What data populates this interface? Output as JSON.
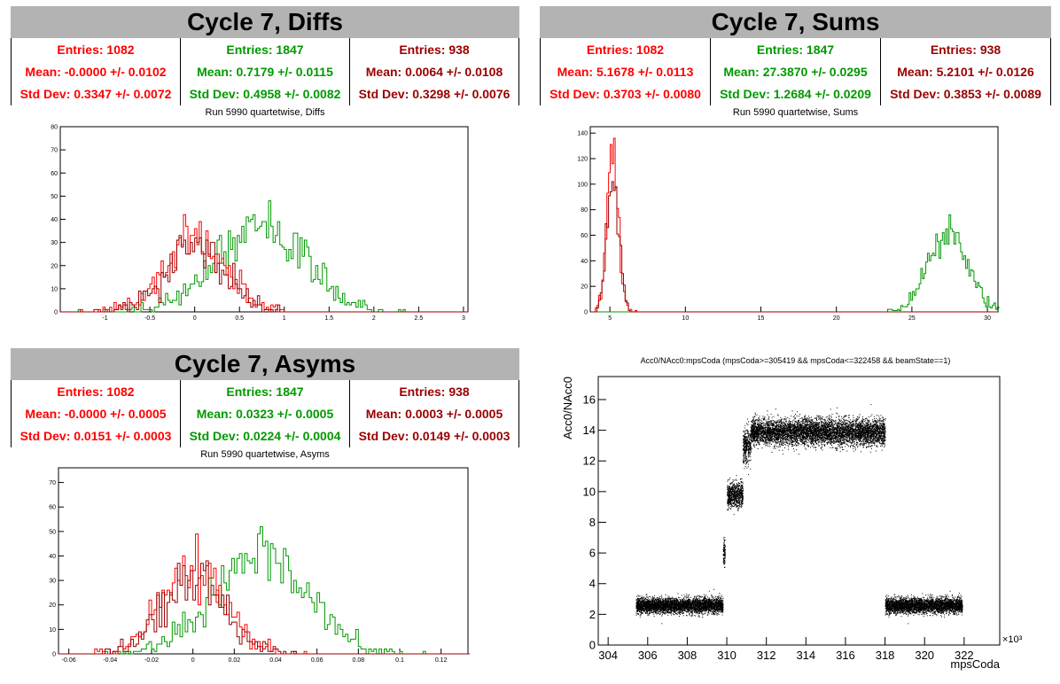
{
  "colors": {
    "red": "#ff0000",
    "green": "#009900",
    "darkred": "#990000",
    "title_bg": "#b3b3b3"
  },
  "panels": [
    {
      "title": "Cycle 7, Diffs",
      "stats": [
        {
          "entries": "Entries: 1082",
          "mean": "Mean: -0.0000 +/- 0.0102",
          "std": "Std Dev: 0.3347 +/- 0.0072",
          "color": "#ff0000"
        },
        {
          "entries": "Entries: 1847",
          "mean": "Mean: 0.7179 +/- 0.0115",
          "std": "Std Dev: 0.4958 +/- 0.0082",
          "color": "#009900"
        },
        {
          "entries": "Entries: 938",
          "mean": "Mean: 0.0064 +/- 0.0108",
          "std": "Std Dev: 0.3298 +/- 0.0076",
          "color": "#990000"
        }
      ],
      "subtitle": "Run 5990 quartetwise, Diffs"
    },
    {
      "title": "Cycle 7, Sums",
      "stats": [
        {
          "entries": "Entries: 1082",
          "mean": "Mean: 5.1678 +/- 0.0113",
          "std": "Std Dev: 0.3703 +/- 0.0080",
          "color": "#ff0000"
        },
        {
          "entries": "Entries: 1847",
          "mean": "Mean: 27.3870 +/- 0.0295",
          "std": "Std Dev: 1.2684 +/- 0.0209",
          "color": "#009900"
        },
        {
          "entries": "Entries: 938",
          "mean": "Mean: 5.2101 +/- 0.0126",
          "std": "Std Dev: 0.3853 +/- 0.0089",
          "color": "#990000"
        }
      ],
      "subtitle": "Run 5990 quartetwise, Sums"
    },
    {
      "title": "Cycle 7, Asyms",
      "stats": [
        {
          "entries": "Entries: 1082",
          "mean": "Mean: -0.0000 +/- 0.0005",
          "std": "Std Dev: 0.0151 +/- 0.0003",
          "color": "#ff0000"
        },
        {
          "entries": "Entries: 1847",
          "mean": "Mean: 0.0323 +/- 0.0005",
          "std": "Std Dev: 0.0224 +/- 0.0004",
          "color": "#009900"
        },
        {
          "entries": "Entries: 938",
          "mean": "Mean: 0.0003 +/- 0.0005",
          "std": "Std Dev: 0.0149 +/- 0.0003",
          "color": "#990000"
        }
      ],
      "subtitle": "Run 5990 quartetwise, Asyms"
    }
  ],
  "chart_data": [
    {
      "type": "histogram",
      "name": "diffs",
      "xlim": [
        -1.5,
        3.05
      ],
      "ylim": [
        0,
        80
      ],
      "xticks": [
        -1,
        -0.5,
        0,
        0.5,
        1,
        1.5,
        2,
        2.5,
        3
      ],
      "xtick_labels": [
        "-1",
        "-0.5",
        "0",
        "0.5",
        "1",
        "1.5",
        "2",
        "2.5",
        "3"
      ],
      "yticks": [
        0,
        10,
        20,
        30,
        40,
        50,
        60,
        70,
        80
      ],
      "ytick_labels": [
        "0",
        "10",
        "20",
        "30",
        "40",
        "50",
        "60",
        "70",
        "80"
      ],
      "series": [
        {
          "color": "#009900",
          "mean": 0.7179,
          "std": 0.4958,
          "entries": 1847,
          "binw": 0.025
        },
        {
          "color": "#ff0000",
          "mean": 0.0,
          "std": 0.3347,
          "entries": 1082,
          "binw": 0.025
        },
        {
          "color": "#990000",
          "mean": 0.0064,
          "std": 0.3298,
          "entries": 938,
          "binw": 0.025
        }
      ]
    },
    {
      "type": "histogram",
      "name": "sums",
      "xlim": [
        3.7,
        30.7
      ],
      "ylim": [
        0,
        145
      ],
      "xticks": [
        5,
        10,
        15,
        20,
        25,
        30
      ],
      "xtick_labels": [
        "5",
        "10",
        "15",
        "20",
        "25",
        "30"
      ],
      "yticks": [
        0,
        20,
        40,
        60,
        80,
        100,
        120,
        140
      ],
      "ytick_labels": [
        "0",
        "20",
        "40",
        "60",
        "80",
        "100",
        "120",
        "140"
      ],
      "series": [
        {
          "color": "#009900",
          "mean": 27.387,
          "std": 1.2684,
          "entries": 1847,
          "binw": 0.11
        },
        {
          "color": "#ff0000",
          "mean": 5.1678,
          "std": 0.3703,
          "entries": 1082,
          "binw": 0.11
        },
        {
          "color": "#990000",
          "mean": 5.2101,
          "std": 0.3853,
          "entries": 938,
          "binw": 0.11
        }
      ]
    },
    {
      "type": "histogram",
      "name": "asyms",
      "xlim": [
        -0.065,
        0.133
      ],
      "ylim": [
        0,
        76
      ],
      "xticks": [
        -0.06,
        -0.04,
        -0.02,
        0,
        0.02,
        0.04,
        0.06,
        0.08,
        0.1,
        0.12
      ],
      "xtick_labels": [
        "-0.06",
        "-0.04",
        "-0.02",
        "0",
        "0.02",
        "0.04",
        "0.06",
        "0.08",
        "0.1",
        "0.12"
      ],
      "yticks": [
        0,
        10,
        20,
        30,
        40,
        50,
        60,
        70
      ],
      "ytick_labels": [
        "0",
        "10",
        "20",
        "30",
        "40",
        "50",
        "60",
        "70"
      ],
      "series": [
        {
          "color": "#009900",
          "mean": 0.0323,
          "std": 0.0224,
          "entries": 1847,
          "binw": 0.00125
        },
        {
          "color": "#ff0000",
          "mean": 0.0,
          "std": 0.0151,
          "entries": 1082,
          "binw": 0.00125
        },
        {
          "color": "#990000",
          "mean": 0.0003,
          "std": 0.0149,
          "entries": 938,
          "binw": 0.00125
        }
      ]
    },
    {
      "type": "scatter",
      "name": "acc0",
      "title": "Acc0/NAcc0:mpsCoda (mpsCoda>=305419 && mpsCoda<=322458 && beamState==1)",
      "xlabel": "mpsCoda",
      "ylabel": "Acc0/NAcc0",
      "x_multiplier": "×10³",
      "xlim": [
        303.5,
        323.8
      ],
      "ylim": [
        0,
        17.5
      ],
      "xticks": [
        304,
        306,
        308,
        310,
        312,
        314,
        316,
        318,
        320,
        322
      ],
      "xtick_labels": [
        "304",
        "306",
        "308",
        "310",
        "312",
        "314",
        "316",
        "318",
        "320",
        "322"
      ],
      "yticks": [
        0,
        2,
        4,
        6,
        8,
        10,
        12,
        14,
        16
      ],
      "ytick_labels": [
        "0",
        "2",
        "4",
        "6",
        "8",
        "10",
        "12",
        "14",
        "16"
      ],
      "segments": [
        {
          "x0": 305.4,
          "x1": 309.8,
          "y": 2.6,
          "spread": 0.35
        },
        {
          "x0": 309.8,
          "x1": 309.9,
          "y": 6.0,
          "spread": 0.6
        },
        {
          "x0": 310.0,
          "x1": 310.8,
          "y": 9.8,
          "spread": 0.6
        },
        {
          "x0": 310.8,
          "x1": 311.2,
          "y": 13.0,
          "spread": 0.8
        },
        {
          "x0": 311.2,
          "x1": 318.0,
          "y": 13.9,
          "spread": 0.6
        },
        {
          "x0": 318.0,
          "x1": 321.9,
          "y": 2.6,
          "spread": 0.35
        }
      ]
    }
  ]
}
